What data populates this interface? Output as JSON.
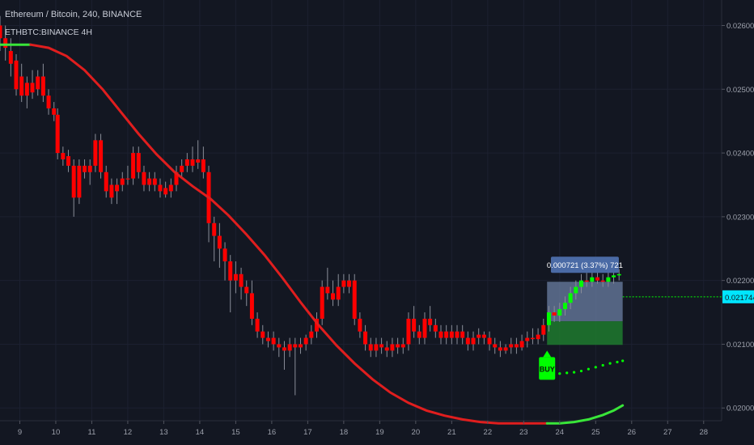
{
  "header": {
    "title": "Ethereum / Bitcoin, 240, BINANCE",
    "subtitle": "ETHBTC:BINANCE 4H"
  },
  "chart_data": {
    "type": "candlestick",
    "x_ticks": [
      "9",
      "10",
      "11",
      "12",
      "13",
      "14",
      "15",
      "16",
      "17",
      "18",
      "19",
      "20",
      "21",
      "22",
      "23",
      "24",
      "25",
      "26",
      "27",
      "28"
    ],
    "y_ticks": [
      "0.026000",
      "0.025000",
      "0.024000",
      "0.023000",
      "0.022000",
      "0.021000",
      "0.020000"
    ],
    "ylim": [
      0.0198,
      0.0264
    ],
    "xlim": [
      8.45,
      28.5
    ],
    "price_label": "0.021744",
    "current_price": 0.021744,
    "measure_label": "0.000721 (3.37%) 721",
    "buy_label": "BUY",
    "measure_range": {
      "x_start": 23.65,
      "x_end": 25.75,
      "y_low": 0.02099,
      "y_high": 0.02198,
      "y_mid": 0.02136
    },
    "buy_signal": {
      "x": 23.65,
      "y": 0.0209
    },
    "colors": {
      "background": "#131722",
      "bearish": "#ff0000",
      "bullish": "#00ff00",
      "ma_red": "#e01e1e",
      "ma_green": "#39e639",
      "price_tag": "#00e5ff",
      "measure_box": "#6b7fa3",
      "measure_profit": "#1e7a2e"
    },
    "ma_line": [
      [
        8.45,
        0.0257
      ],
      [
        8.8,
        0.0257
      ],
      [
        9.3,
        0.0257
      ],
      [
        9.8,
        0.02565
      ],
      [
        10.3,
        0.02552
      ],
      [
        10.8,
        0.0253
      ],
      [
        11.3,
        0.025
      ],
      [
        11.8,
        0.02465
      ],
      [
        12.3,
        0.0243
      ],
      [
        12.8,
        0.02398
      ],
      [
        13.3,
        0.0237
      ],
      [
        13.8,
        0.02348
      ],
      [
        14.3,
        0.02328
      ],
      [
        14.8,
        0.02302
      ],
      [
        15.3,
        0.02272
      ],
      [
        15.8,
        0.0224
      ],
      [
        16.3,
        0.02204
      ],
      [
        16.8,
        0.02166
      ],
      [
        17.3,
        0.0213
      ],
      [
        17.8,
        0.02098
      ],
      [
        18.3,
        0.0207
      ],
      [
        18.8,
        0.02045
      ],
      [
        19.3,
        0.02024
      ],
      [
        19.8,
        0.02008
      ],
      [
        20.3,
        0.01996
      ],
      [
        20.8,
        0.01988
      ],
      [
        21.3,
        0.01982
      ],
      [
        21.8,
        0.01978
      ],
      [
        22.3,
        0.01976
      ],
      [
        22.8,
        0.01976
      ],
      [
        23.3,
        0.01976
      ],
      [
        23.65,
        0.01976
      ],
      [
        24.0,
        0.01976
      ],
      [
        24.4,
        0.01978
      ],
      [
        24.8,
        0.01982
      ],
      [
        25.2,
        0.01989
      ],
      [
        25.5,
        0.01996
      ],
      [
        25.75,
        0.02004
      ]
    ],
    "green_dots": [
      [
        23.8,
        0.02052
      ],
      [
        24.0,
        0.02054
      ],
      [
        24.2,
        0.02055
      ],
      [
        24.4,
        0.02056
      ],
      [
        24.6,
        0.02058
      ],
      [
        24.8,
        0.02061
      ],
      [
        25.0,
        0.02064
      ],
      [
        25.2,
        0.02067
      ],
      [
        25.4,
        0.0207
      ],
      [
        25.6,
        0.02072
      ],
      [
        25.75,
        0.02074
      ]
    ],
    "candles": [
      [
        8.45,
        0.026,
        0.0258,
        0.02615,
        0.0256
      ],
      [
        8.6,
        0.0258,
        0.02565,
        0.026,
        0.02545
      ],
      [
        8.75,
        0.0256,
        0.0254,
        0.0258,
        0.0252
      ],
      [
        8.9,
        0.02545,
        0.025,
        0.02555,
        0.0249
      ],
      [
        9.05,
        0.0252,
        0.0249,
        0.0254,
        0.0248
      ],
      [
        9.2,
        0.0249,
        0.0251,
        0.0252,
        0.0247
      ],
      [
        9.35,
        0.0251,
        0.02495,
        0.0253,
        0.02485
      ],
      [
        9.5,
        0.025,
        0.0252,
        0.0253,
        0.0249
      ],
      [
        9.65,
        0.0252,
        0.0249,
        0.0254,
        0.0248
      ],
      [
        9.8,
        0.0249,
        0.0247,
        0.025,
        0.0246
      ],
      [
        9.95,
        0.0247,
        0.0246,
        0.0248,
        0.0245
      ],
      [
        10.05,
        0.0246,
        0.024,
        0.0247,
        0.0239
      ],
      [
        10.2,
        0.024,
        0.0239,
        0.0241,
        0.0238
      ],
      [
        10.35,
        0.02395,
        0.0238,
        0.02405,
        0.0237
      ],
      [
        10.5,
        0.0238,
        0.0233,
        0.0239,
        0.023
      ],
      [
        10.65,
        0.0233,
        0.0238,
        0.0239,
        0.0232
      ],
      [
        10.8,
        0.0238,
        0.0237,
        0.0239,
        0.0236
      ],
      [
        10.95,
        0.0237,
        0.0238,
        0.0239,
        0.0235
      ],
      [
        11.1,
        0.0238,
        0.0242,
        0.0243,
        0.0237
      ],
      [
        11.25,
        0.0242,
        0.0237,
        0.0243,
        0.0236
      ],
      [
        11.4,
        0.0237,
        0.0234,
        0.0238,
        0.0233
      ],
      [
        11.55,
        0.0235,
        0.0233,
        0.0236,
        0.0232
      ],
      [
        11.7,
        0.0234,
        0.0235,
        0.0236,
        0.0232
      ],
      [
        11.85,
        0.0235,
        0.0236,
        0.0237,
        0.0234
      ],
      [
        12.0,
        0.0236,
        0.0236,
        0.0238,
        0.0235
      ],
      [
        12.15,
        0.0236,
        0.024,
        0.0241,
        0.0235
      ],
      [
        12.3,
        0.024,
        0.0237,
        0.0241,
        0.0236
      ],
      [
        12.45,
        0.0237,
        0.0235,
        0.0238,
        0.0234
      ],
      [
        12.6,
        0.0235,
        0.0236,
        0.0237,
        0.0234
      ],
      [
        12.75,
        0.0236,
        0.0235,
        0.0237,
        0.0234
      ],
      [
        12.9,
        0.0235,
        0.0234,
        0.0236,
        0.0233
      ],
      [
        13.05,
        0.02345,
        0.02335,
        0.02355,
        0.0233
      ],
      [
        13.2,
        0.0234,
        0.0235,
        0.0236,
        0.0233
      ],
      [
        13.35,
        0.0235,
        0.0237,
        0.0238,
        0.0234
      ],
      [
        13.5,
        0.0237,
        0.0238,
        0.0239,
        0.0236
      ],
      [
        13.65,
        0.0238,
        0.0239,
        0.024,
        0.0237
      ],
      [
        13.8,
        0.0239,
        0.0238,
        0.0241,
        0.0237
      ],
      [
        13.95,
        0.02385,
        0.0239,
        0.0242,
        0.02375
      ],
      [
        14.1,
        0.0239,
        0.0237,
        0.0241,
        0.0236
      ],
      [
        14.25,
        0.0237,
        0.0229,
        0.0238,
        0.0226
      ],
      [
        14.4,
        0.0229,
        0.0227,
        0.023,
        0.0223
      ],
      [
        14.55,
        0.0227,
        0.0225,
        0.0229,
        0.0222
      ],
      [
        14.7,
        0.0225,
        0.0223,
        0.0226,
        0.022
      ],
      [
        14.85,
        0.0223,
        0.022,
        0.0224,
        0.0215
      ],
      [
        15.0,
        0.0221,
        0.022,
        0.0223,
        0.0218
      ],
      [
        15.15,
        0.0221,
        0.0219,
        0.0222,
        0.0217
      ],
      [
        15.3,
        0.0219,
        0.0218,
        0.022,
        0.0216
      ],
      [
        15.45,
        0.0218,
        0.0214,
        0.022,
        0.0213
      ],
      [
        15.6,
        0.0214,
        0.0212,
        0.0215,
        0.0211
      ],
      [
        15.75,
        0.0212,
        0.0211,
        0.0213,
        0.021
      ],
      [
        15.9,
        0.0211,
        0.02105,
        0.0212,
        0.02095
      ],
      [
        16.05,
        0.0211,
        0.021,
        0.0212,
        0.0209
      ],
      [
        16.2,
        0.021,
        0.02095,
        0.0211,
        0.0208
      ],
      [
        16.35,
        0.02095,
        0.0209,
        0.02105,
        0.0206
      ],
      [
        16.5,
        0.0209,
        0.021,
        0.0211,
        0.0208
      ],
      [
        16.65,
        0.021,
        0.02095,
        0.0211,
        0.0202
      ],
      [
        16.8,
        0.02095,
        0.021,
        0.0211,
        0.02085
      ],
      [
        16.95,
        0.021,
        0.0211,
        0.02115,
        0.0209
      ],
      [
        17.1,
        0.0211,
        0.0212,
        0.0213,
        0.021
      ],
      [
        17.25,
        0.0212,
        0.0214,
        0.0215,
        0.0211
      ],
      [
        17.4,
        0.0214,
        0.0219,
        0.022,
        0.0213
      ],
      [
        17.55,
        0.0219,
        0.0218,
        0.0222,
        0.0217
      ],
      [
        17.7,
        0.0218,
        0.0217,
        0.022,
        0.0216
      ],
      [
        17.85,
        0.0217,
        0.0219,
        0.0221,
        0.0216
      ],
      [
        18.0,
        0.0219,
        0.022,
        0.0221,
        0.0218
      ],
      [
        18.15,
        0.022,
        0.0219,
        0.0221,
        0.0218
      ],
      [
        18.3,
        0.022,
        0.0214,
        0.0221,
        0.0213
      ],
      [
        18.45,
        0.0214,
        0.0212,
        0.0215,
        0.0211
      ],
      [
        18.6,
        0.0212,
        0.021,
        0.0213,
        0.0209
      ],
      [
        18.75,
        0.021,
        0.0209,
        0.0211,
        0.0208
      ],
      [
        18.9,
        0.0209,
        0.021,
        0.0211,
        0.0208
      ],
      [
        19.05,
        0.021,
        0.02095,
        0.0211,
        0.02085
      ],
      [
        19.2,
        0.02095,
        0.0209,
        0.02105,
        0.0208
      ],
      [
        19.35,
        0.0209,
        0.021,
        0.0211,
        0.0208
      ],
      [
        19.5,
        0.021,
        0.02095,
        0.0211,
        0.02085
      ],
      [
        19.65,
        0.02095,
        0.021,
        0.0211,
        0.02085
      ],
      [
        19.8,
        0.021,
        0.0214,
        0.0215,
        0.0209
      ],
      [
        19.95,
        0.0214,
        0.0212,
        0.0216,
        0.0211
      ],
      [
        20.1,
        0.0212,
        0.0211,
        0.0213,
        0.021
      ],
      [
        20.25,
        0.0211,
        0.0214,
        0.0215,
        0.021
      ],
      [
        20.4,
        0.0214,
        0.0213,
        0.0216,
        0.0212
      ],
      [
        20.55,
        0.0213,
        0.0212,
        0.0214,
        0.0211
      ],
      [
        20.7,
        0.0212,
        0.0211,
        0.0213,
        0.021
      ],
      [
        20.85,
        0.0211,
        0.0212,
        0.0213,
        0.021
      ],
      [
        21.0,
        0.0212,
        0.0211,
        0.0213,
        0.021
      ],
      [
        21.15,
        0.0211,
        0.0212,
        0.0213,
        0.021
      ],
      [
        21.3,
        0.0212,
        0.0211,
        0.0213,
        0.021
      ],
      [
        21.45,
        0.0211,
        0.021,
        0.0212,
        0.0209
      ],
      [
        21.6,
        0.021,
        0.0211,
        0.0212,
        0.0209
      ],
      [
        21.75,
        0.0211,
        0.02115,
        0.02125,
        0.021
      ],
      [
        21.9,
        0.02115,
        0.0211,
        0.0212,
        0.021
      ],
      [
        22.05,
        0.0211,
        0.021,
        0.0212,
        0.0209
      ],
      [
        22.2,
        0.021,
        0.02095,
        0.0211,
        0.02085
      ],
      [
        22.35,
        0.02095,
        0.0209,
        0.02105,
        0.0208
      ],
      [
        22.5,
        0.0209,
        0.02095,
        0.021,
        0.02085
      ],
      [
        22.65,
        0.02095,
        0.021,
        0.0211,
        0.02085
      ],
      [
        22.8,
        0.021,
        0.02095,
        0.0211,
        0.02085
      ],
      [
        22.95,
        0.02095,
        0.02105,
        0.02115,
        0.0209
      ],
      [
        23.1,
        0.02105,
        0.0211,
        0.0212,
        0.02095
      ],
      [
        23.25,
        0.0211,
        0.02108,
        0.02125,
        0.021
      ],
      [
        23.4,
        0.02108,
        0.02115,
        0.02125,
        0.021
      ],
      [
        23.55,
        0.02115,
        0.0213,
        0.0214,
        0.02105
      ],
      [
        23.7,
        0.0213,
        0.0215,
        0.0216,
        0.0212
      ],
      [
        23.85,
        0.0215,
        0.02145,
        0.0216,
        0.02135
      ],
      [
        24.0,
        0.02145,
        0.02155,
        0.02165,
        0.02135
      ],
      [
        24.15,
        0.02155,
        0.02165,
        0.02175,
        0.02145
      ],
      [
        24.3,
        0.02165,
        0.0218,
        0.0219,
        0.02155
      ],
      [
        24.45,
        0.0218,
        0.0219,
        0.022,
        0.0217
      ],
      [
        24.6,
        0.0219,
        0.022,
        0.0221,
        0.0218
      ],
      [
        24.75,
        0.022,
        0.02198,
        0.02212,
        0.0219
      ],
      [
        24.9,
        0.02198,
        0.02205,
        0.02215,
        0.0219
      ],
      [
        25.05,
        0.02205,
        0.022,
        0.02215,
        0.02195
      ],
      [
        25.2,
        0.022,
        0.02198,
        0.0221,
        0.0219
      ],
      [
        25.35,
        0.02198,
        0.02205,
        0.02215,
        0.0219
      ],
      [
        25.5,
        0.02205,
        0.02208,
        0.02215,
        0.02195
      ],
      [
        25.65,
        0.02208,
        0.0221,
        0.02218,
        0.022
      ]
    ]
  }
}
